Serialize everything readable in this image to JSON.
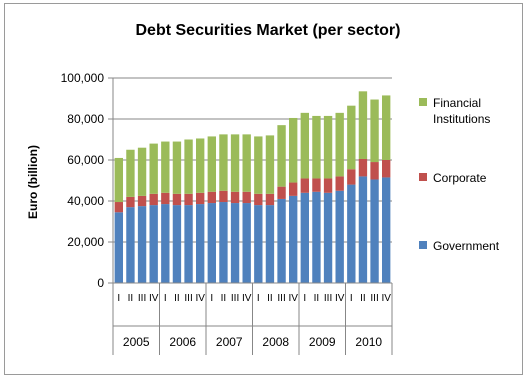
{
  "chart_data": {
    "type": "bar",
    "stacked": true,
    "title": "Debt Securities Market (per sector)",
    "ylabel": "Euro (billion)",
    "ylim": [
      0,
      100000
    ],
    "yticks": [
      "0",
      "20,000",
      "40,000",
      "60,000",
      "80,000",
      "100,000"
    ],
    "ytick_values": [
      0,
      20000,
      40000,
      60000,
      80000,
      100000
    ],
    "grid": "horizontal",
    "legend_position": "right",
    "years": [
      "2005",
      "2006",
      "2007",
      "2008",
      "2009",
      "2010"
    ],
    "quarter_labels": [
      "I",
      "II",
      "III",
      "IV"
    ],
    "categories": [
      "2005 I",
      "2005 II",
      "2005 III",
      "2005 IV",
      "2006 I",
      "2006 II",
      "2006 III",
      "2006 IV",
      "2007 I",
      "2007 II",
      "2007 III",
      "2007 IV",
      "2008 I",
      "2008 II",
      "2008 III",
      "2008 IV",
      "2009 I",
      "2009 II",
      "2009 III",
      "2009 IV",
      "2010 I",
      "2010 II",
      "2010 III",
      "2010 IV"
    ],
    "series": [
      {
        "name": "Government",
        "color": "#4f81bd",
        "values": [
          34500,
          37000,
          37500,
          38000,
          38500,
          38000,
          38000,
          38500,
          39000,
          39500,
          39000,
          39000,
          38000,
          38000,
          41000,
          42500,
          44000,
          44500,
          44000,
          45000,
          48000,
          52000,
          50500,
          51500
        ]
      },
      {
        "name": "Corporate",
        "color": "#c0504d",
        "values": [
          5000,
          5000,
          5000,
          5500,
          5500,
          5500,
          5500,
          5500,
          5500,
          5500,
          5500,
          5500,
          5500,
          5500,
          6000,
          6500,
          7000,
          6500,
          7000,
          7000,
          7500,
          8500,
          8500,
          8500
        ]
      },
      {
        "name": "Financial Institutions",
        "color": "#9bbb59",
        "values": [
          21500,
          23000,
          23500,
          24500,
          25000,
          25500,
          26500,
          26500,
          27000,
          27500,
          28000,
          28000,
          28000,
          28500,
          30000,
          31500,
          32000,
          30500,
          30500,
          31000,
          31000,
          33000,
          30500,
          31500
        ]
      }
    ]
  }
}
